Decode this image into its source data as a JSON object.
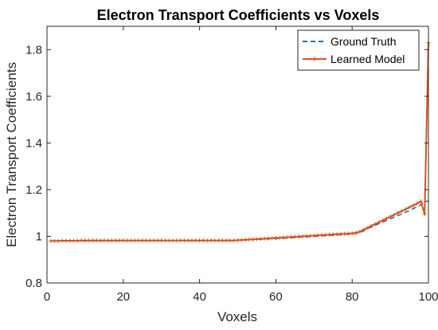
{
  "chart_data": {
    "type": "line",
    "title": "Electron Transport Coefficients vs Voxels",
    "xlabel": "Voxels",
    "ylabel": "Electron Transport Coefficients",
    "xlim": [
      0,
      100
    ],
    "ylim": [
      0.8,
      1.9
    ],
    "xticks": [
      0,
      20,
      40,
      60,
      80,
      100
    ],
    "yticks": [
      0.8,
      1,
      1.2,
      1.4,
      1.6,
      1.8
    ],
    "xtick_labels": [
      "0",
      "20",
      "40",
      "60",
      "80",
      "100"
    ],
    "ytick_labels": [
      "0.8",
      "1",
      "1.2",
      "1.4",
      "1.6",
      "1.8"
    ],
    "grid": false,
    "legend_position": "top-right",
    "series": [
      {
        "name": "Ground Truth",
        "color": "#0072BD",
        "line_style": "dashed",
        "marker": "none",
        "x": [
          1,
          50,
          60,
          70,
          80,
          82,
          85,
          90,
          95,
          98,
          99,
          100
        ],
        "y": [
          0.98,
          0.983,
          0.99,
          1.0,
          1.01,
          1.015,
          1.04,
          1.075,
          1.11,
          1.135,
          1.15,
          1.15
        ]
      },
      {
        "name": "Learned Model",
        "color": "#D95319",
        "line_style": "solid",
        "marker": "plus",
        "x": [
          1,
          2,
          3,
          4,
          5,
          6,
          7,
          8,
          9,
          10,
          11,
          12,
          13,
          14,
          15,
          16,
          17,
          18,
          19,
          20,
          21,
          22,
          23,
          24,
          25,
          26,
          27,
          28,
          29,
          30,
          31,
          32,
          33,
          34,
          35,
          36,
          37,
          38,
          39,
          40,
          41,
          42,
          43,
          44,
          45,
          46,
          47,
          48,
          49,
          50,
          51,
          52,
          53,
          54,
          55,
          56,
          57,
          58,
          59,
          60,
          61,
          62,
          63,
          64,
          65,
          66,
          67,
          68,
          69,
          70,
          71,
          72,
          73,
          74,
          75,
          76,
          77,
          78,
          79,
          80,
          81,
          82,
          83,
          84,
          85,
          86,
          87,
          88,
          89,
          90,
          91,
          92,
          93,
          94,
          95,
          96,
          97,
          98,
          99,
          100
        ],
        "y": [
          0.98,
          0.98,
          0.98,
          0.981,
          0.981,
          0.981,
          0.981,
          0.981,
          0.982,
          0.982,
          0.982,
          0.982,
          0.982,
          0.982,
          0.982,
          0.982,
          0.982,
          0.982,
          0.982,
          0.982,
          0.982,
          0.982,
          0.982,
          0.982,
          0.982,
          0.982,
          0.982,
          0.982,
          0.982,
          0.982,
          0.982,
          0.982,
          0.982,
          0.982,
          0.982,
          0.982,
          0.982,
          0.982,
          0.982,
          0.982,
          0.982,
          0.982,
          0.982,
          0.982,
          0.982,
          0.982,
          0.982,
          0.982,
          0.982,
          0.983,
          0.984,
          0.985,
          0.986,
          0.987,
          0.988,
          0.989,
          0.99,
          0.991,
          0.992,
          0.993,
          0.994,
          0.995,
          0.996,
          0.997,
          0.998,
          0.999,
          1.0,
          1.001,
          1.002,
          1.003,
          1.004,
          1.005,
          1.006,
          1.007,
          1.008,
          1.009,
          1.01,
          1.011,
          1.012,
          1.013,
          1.015,
          1.02,
          1.028,
          1.036,
          1.044,
          1.052,
          1.06,
          1.068,
          1.076,
          1.084,
          1.092,
          1.1,
          1.108,
          1.116,
          1.124,
          1.132,
          1.14,
          1.15,
          1.095,
          1.83
        ]
      }
    ]
  }
}
